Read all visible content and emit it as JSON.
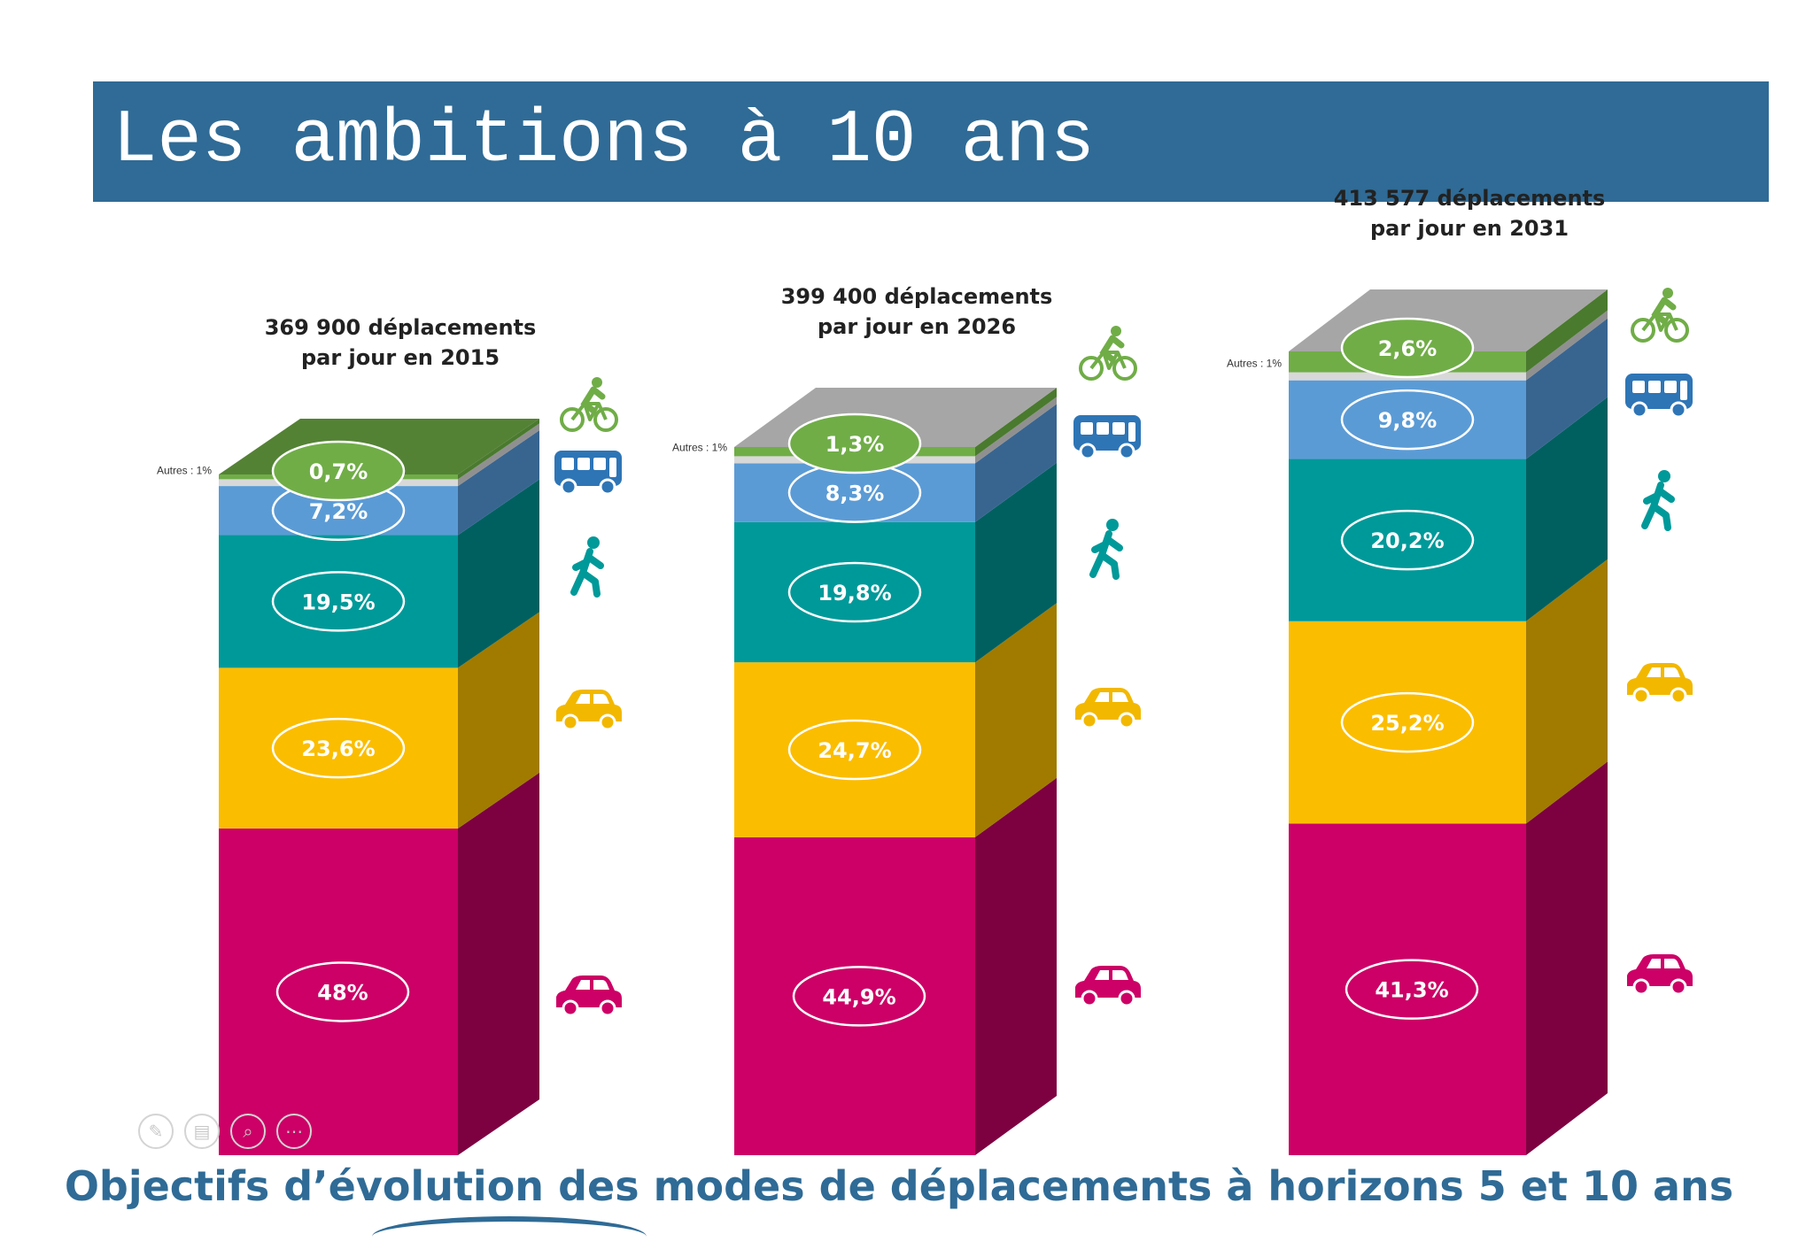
{
  "title": "Les ambitions à 10 ans",
  "caption": "Objectifs d’évolution des modes de déplacements à horizons 5 et 10 ans",
  "chart_data": {
    "type": "bar",
    "stacked": true,
    "style": "3d",
    "categories": [
      "2015",
      "2026",
      "2031"
    ],
    "column_titles": [
      [
        "369 900 déplacements",
        "par jour en 2015"
      ],
      [
        "399 400 déplacements",
        "par jour en 2026"
      ],
      [
        "413 577 déplacements",
        "par jour en 2031"
      ]
    ],
    "series": [
      {
        "values": [
          48,
          44.9,
          41.3
        ],
        "labels": [
          "48%",
          "44,9%",
          "41,3%"
        ],
        "icon": "car-icon",
        "color": "#cc0066",
        "side_color": "#7d0040"
      },
      {
        "values": [
          23.6,
          24.7,
          25.2
        ],
        "labels": [
          "23,6%",
          "24,7%",
          "25,2%"
        ],
        "icon": "carpool-car-icon",
        "color": "#fbbd00",
        "side_color": "#a07b00"
      },
      {
        "values": [
          19.5,
          19.8,
          20.2
        ],
        "labels": [
          "19,5%",
          "19,8%",
          "20,2%"
        ],
        "icon": "pedestrian-icon",
        "color": "#009999",
        "side_color": "#006060"
      },
      {
        "values": [
          7.2,
          8.3,
          9.8
        ],
        "labels": [
          "7,2%",
          "8,3%",
          "9,8%"
        ],
        "icon": "bus-icon",
        "color": "#5b9bd5",
        "side_color": "#386590"
      },
      {
        "values": [
          1,
          1,
          1
        ],
        "labels": [
          "Autres : 1%",
          "Autres : 1%",
          "Autres : 1%"
        ],
        "icon": "",
        "color": "#d8d8d8",
        "side_color": "#909090"
      },
      {
        "values": [
          0.7,
          1.3,
          2.6
        ],
        "labels": [
          "0,7%",
          "1,3%",
          "2,6%"
        ],
        "icon": "bicycle-icon",
        "color": "#70ad47",
        "side_color": "#4a7a2e"
      }
    ],
    "colors": {
      "top_face_2015": "#548235",
      "top_face_other": "#a6a6a6",
      "icon_car": "#cc0066",
      "icon_carpool": "#f2b800",
      "icon_pedestrian": "#009999",
      "icon_bus": "#2e75b6",
      "icon_bicycle": "#70ad47"
    }
  }
}
